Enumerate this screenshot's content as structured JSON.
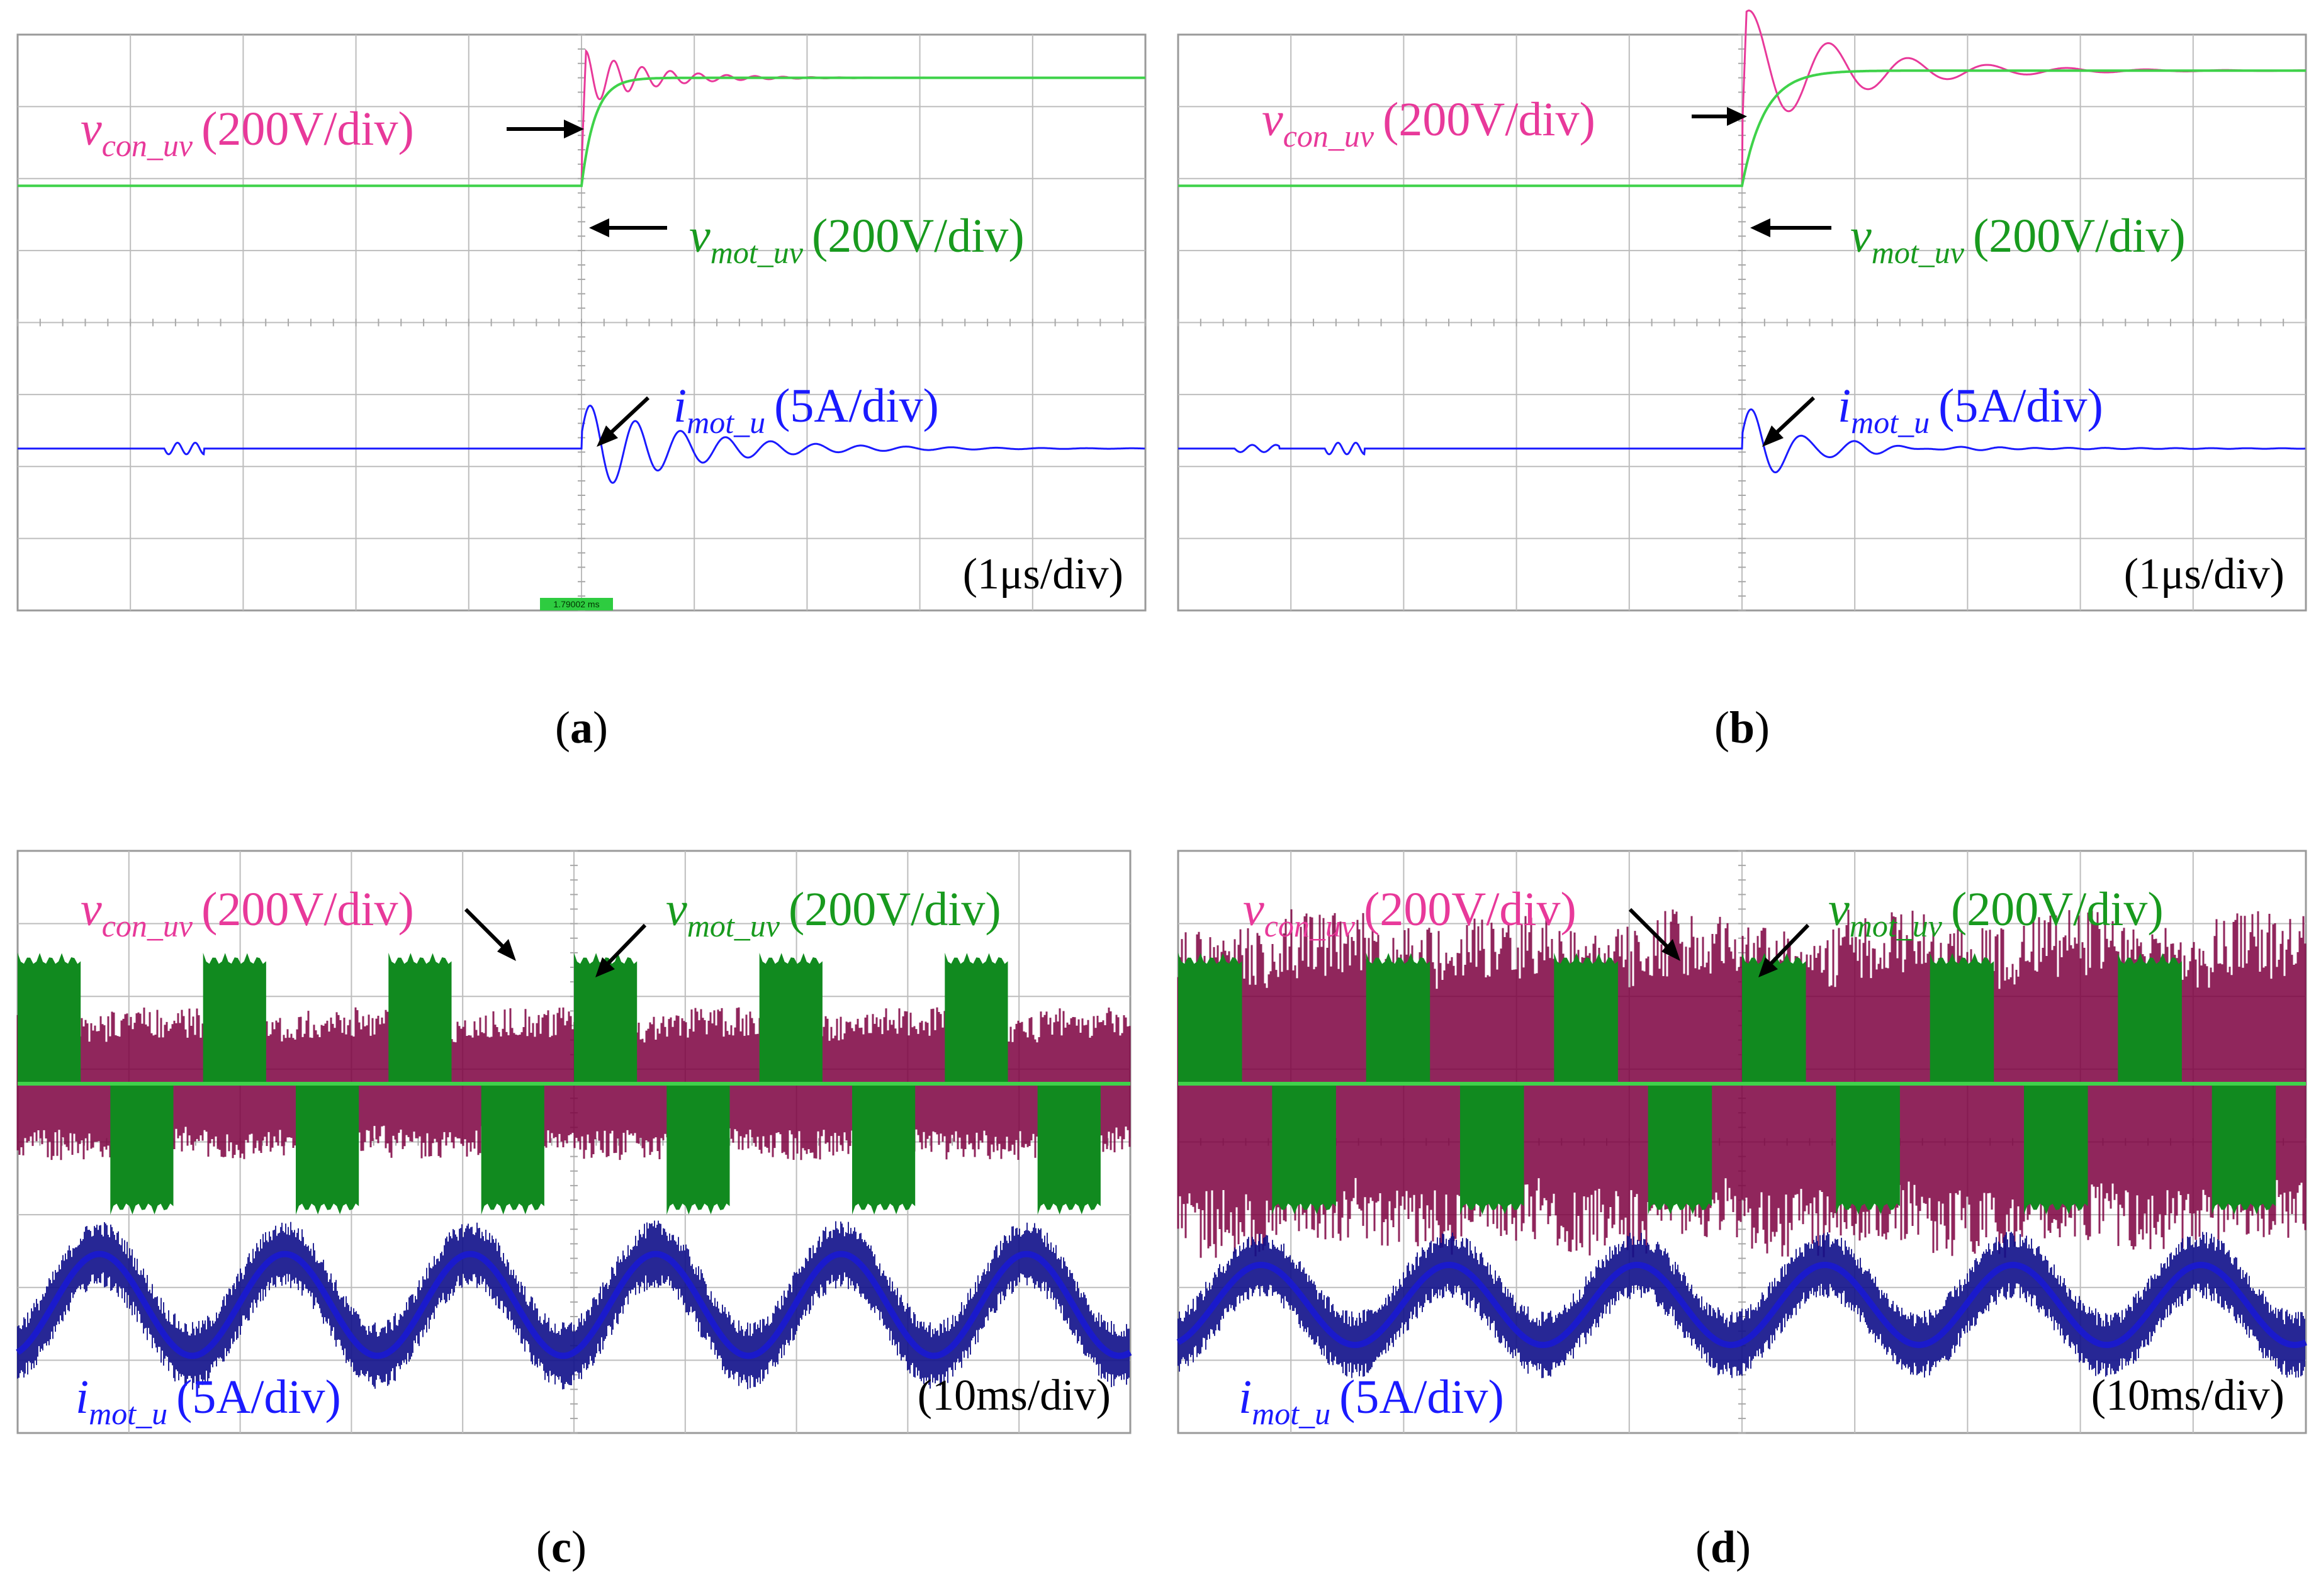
{
  "colors": {
    "v_con": "#e8399a",
    "v_mot": "#189a1e",
    "v_mot_light": "#3fd24a",
    "i_mot": "#1a1aff",
    "v_con_dense": "#7d0040",
    "v_mot_dense": "#118a1f",
    "i_mot_dense": "#10108a"
  },
  "panels": [
    {
      "id": "a",
      "caption_letter": "a",
      "time_label": "(1μs/div)",
      "marker_label": "1.79002 ms",
      "labels": {
        "v_con": {
          "base": "v",
          "sub": "con_uv",
          "scale": "(200V/div)"
        },
        "v_mot": {
          "base": "v",
          "sub": "mot_uv",
          "scale": "(200V/div)"
        },
        "i_mot": {
          "base": "i",
          "sub": "mot_u",
          "scale": "(5A/div)"
        }
      }
    },
    {
      "id": "b",
      "caption_letter": "b",
      "time_label": "(1μs/div)",
      "labels": {
        "v_con": {
          "base": "v",
          "sub": "con_uv",
          "scale": "(200V/div)"
        },
        "v_mot": {
          "base": "v",
          "sub": "mot_uv",
          "scale": "(200V/div)"
        },
        "i_mot": {
          "base": "i",
          "sub": "mot_u",
          "scale": "(5A/div)"
        }
      }
    },
    {
      "id": "c",
      "caption_letter": "c",
      "time_label": "(10ms/div)",
      "labels": {
        "v_con": {
          "base": "v",
          "sub": "con_uv",
          "scale": "(200V/div)"
        },
        "v_mot": {
          "base": "v",
          "sub": "mot_uv",
          "scale": "(200V/div)"
        },
        "i_mot": {
          "base": "i",
          "sub": "mot_u",
          "scale": "(5A/div)"
        }
      }
    },
    {
      "id": "d",
      "caption_letter": "d",
      "time_label": "(10ms/div)",
      "labels": {
        "v_con": {
          "base": "v",
          "sub": "con_uv",
          "scale": "(200V/div)"
        },
        "v_mot": {
          "base": "v",
          "sub": "mot_uv",
          "scale": "(200V/div)"
        },
        "i_mot": {
          "base": "i",
          "sub": "mot_u",
          "scale": "(5A/div)"
        }
      }
    }
  ],
  "chart_data": [
    {
      "panel": "a",
      "type": "line",
      "title": "",
      "xlabel": "",
      "ylabel": "",
      "grid": true,
      "divisions": {
        "x": 10,
        "y": 8
      },
      "xlim_div": [
        0,
        10
      ],
      "series": [
        {
          "name": "v_con_uv",
          "unit_per_div": "200V/div",
          "step_div": 5.0,
          "initial_div": 0,
          "final_div": 1.5,
          "overshoot_div": 0.4,
          "ring_cycles": 8
        },
        {
          "name": "v_mot_uv",
          "unit_per_div": "200V/div",
          "step_div": 5.0,
          "initial_div": 0,
          "final_div": 1.5
        },
        {
          "name": "i_mot_u",
          "unit_per_div": "5A/div",
          "step_div": 5.0,
          "peak_div": 0.65,
          "ring_cycles": 8
        }
      ]
    },
    {
      "panel": "b",
      "type": "line",
      "title": "",
      "xlabel": "",
      "ylabel": "",
      "grid": true,
      "divisions": {
        "x": 10,
        "y": 8
      },
      "xlim_div": [
        0,
        10
      ],
      "series": [
        {
          "name": "v_con_uv",
          "unit_per_div": "200V/div",
          "step_div": 5.0,
          "initial_div": 0,
          "final_div": 1.6,
          "overshoot_div": 0.9,
          "ring_cycles": 5
        },
        {
          "name": "v_mot_uv",
          "unit_per_div": "200V/div",
          "step_div": 5.0,
          "initial_div": 0,
          "final_div": 1.6
        },
        {
          "name": "i_mot_u",
          "unit_per_div": "5A/div",
          "step_div": 5.0,
          "peak_div": 0.6,
          "ring_cycles": 4
        }
      ]
    },
    {
      "panel": "c",
      "type": "line",
      "title": "",
      "xlabel": "",
      "ylabel": "",
      "grid": true,
      "divisions": {
        "x": 10,
        "y": 8
      },
      "xlim_div": [
        0,
        10
      ],
      "series": [
        {
          "name": "v_con_uv",
          "unit_per_div": "200V/div",
          "amplitude_div": 1.5,
          "pwm_blocks": 12
        },
        {
          "name": "v_mot_uv",
          "unit_per_div": "200V/div",
          "amplitude_div": 1.8,
          "pwm_blocks": 12
        },
        {
          "name": "i_mot_u",
          "unit_per_div": "5A/div",
          "amplitude_div": 0.7,
          "cycles": 6
        }
      ]
    },
    {
      "panel": "d",
      "type": "line",
      "title": "",
      "xlabel": "",
      "ylabel": "",
      "grid": true,
      "divisions": {
        "x": 10,
        "y": 8
      },
      "xlim_div": [
        0,
        10
      ],
      "series": [
        {
          "name": "v_con_uv",
          "unit_per_div": "200V/div",
          "amplitude_div": 2.4,
          "pwm_blocks": 12
        },
        {
          "name": "v_mot_uv",
          "unit_per_div": "200V/div",
          "amplitude_div": 1.8,
          "pwm_blocks": 12
        },
        {
          "name": "i_mot_u",
          "unit_per_div": "5A/div",
          "amplitude_div": 0.55,
          "cycles": 6
        }
      ]
    }
  ]
}
